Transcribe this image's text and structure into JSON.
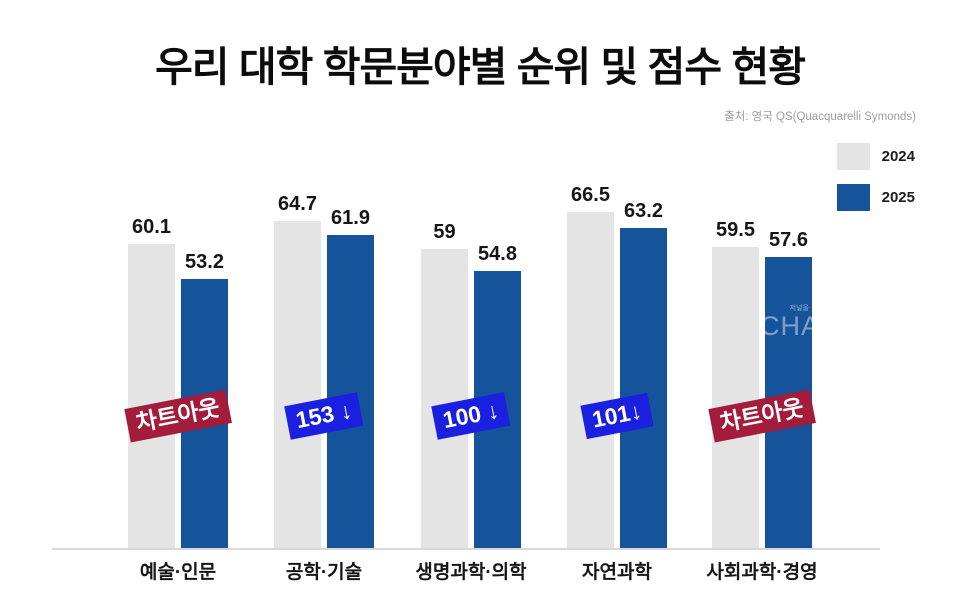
{
  "chart_data": {
    "type": "bar",
    "title": "우리 대학 학문분야별 순위 및 점수 현황",
    "source": "출처: 영국 QS(Quacquarelli Symonds)",
    "categories": [
      "예술·인문",
      "공학·기술",
      "생명과학·의학",
      "자연과학",
      "사회과학·경영"
    ],
    "series": [
      {
        "name": "2024",
        "color": "#e4e4e4",
        "values": [
          60.1,
          64.7,
          59,
          66.5,
          59.5
        ]
      },
      {
        "name": "2025",
        "color": "#15539b",
        "values": [
          53.2,
          61.9,
          54.8,
          63.2,
          57.6
        ]
      }
    ],
    "badges": [
      {
        "text": "차트아웃",
        "color": "#a31c3b"
      },
      {
        "text": "153 ↓",
        "color": "#1a1fe0"
      },
      {
        "text": "100 ↓",
        "color": "#1a1fe0"
      },
      {
        "text": "101↓",
        "color": "#1a1fe0"
      },
      {
        "text": "차트아웃",
        "color": "#a31c3b"
      }
    ],
    "ylim": [
      0,
      68
    ],
    "grid": false,
    "legend_position": "top-right",
    "xlabel": "",
    "ylabel": ""
  },
  "watermark": {
    "small": "저널을",
    "large": "CHA"
  },
  "colors": {
    "background": "#ffffff",
    "axis_line": "#d9d9d9",
    "text": "#161616",
    "source_text": "#9e9e9e",
    "bar_2024": "#e4e4e4",
    "bar_2025": "#15539b",
    "badge_red": "#a31c3b",
    "badge_blue": "#1a1fe0"
  }
}
